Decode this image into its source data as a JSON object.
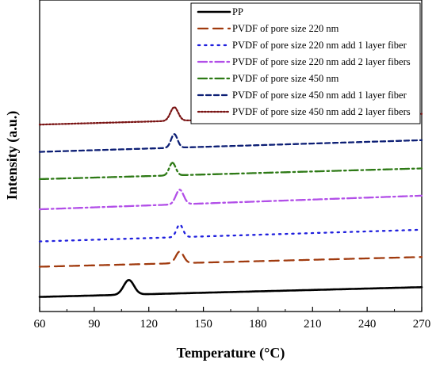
{
  "chart_data": {
    "type": "line",
    "xlabel": "Temperature (°C)",
    "ylabel": "Intensity (a.u.)",
    "xlim": [
      60,
      270
    ],
    "x_ticks": [
      60,
      90,
      120,
      150,
      180,
      210,
      240,
      270
    ],
    "y_ticks": [],
    "grid": false,
    "legend_position": "top-right",
    "series": [
      {
        "name": "PP",
        "color": "#000000",
        "dash": "solid",
        "baseline_start": 0.5,
        "baseline_end": 1.5,
        "peak_x": 109,
        "peak_height": 1.5,
        "peak_width": 4,
        "points": [
          [
            60,
            0.5
          ],
          [
            100,
            0.9
          ],
          [
            109,
            2.4
          ],
          [
            118,
            0.9
          ],
          [
            270,
            1.5
          ]
        ]
      },
      {
        "name": "PVDF of pore size 220 nm",
        "color": "#a03a0e",
        "dash": "long-dash",
        "baseline_start": 3.6,
        "baseline_end": 4.6,
        "peak_x": 137,
        "peak_height": 1.2,
        "peak_width": 3,
        "points": [
          [
            60,
            3.6
          ],
          [
            130,
            4.2
          ],
          [
            137,
            5.4
          ],
          [
            145,
            4.0
          ],
          [
            270,
            4.6
          ]
        ]
      },
      {
        "name": "PVDF of pore size 220 nm add 1 layer fiber",
        "color": "#1f1fdd",
        "dash": "dot",
        "baseline_start": 6.2,
        "baseline_end": 7.4,
        "peak_x": 137,
        "peak_height": 1.3,
        "peak_width": 2.5,
        "points": [
          [
            60,
            6.2
          ],
          [
            130,
            6.8
          ],
          [
            137,
            8.0
          ],
          [
            142,
            6.9
          ],
          [
            270,
            7.4
          ]
        ]
      },
      {
        "name": "PVDF of pore size 220 nm add 2 layer fibers",
        "color": "#b24fe8",
        "dash": "dash-dot",
        "baseline_start": 9.5,
        "baseline_end": 10.9,
        "peak_x": 137,
        "peak_height": 1.5,
        "peak_width": 3,
        "points": [
          [
            60,
            9.5
          ],
          [
            130,
            10.0
          ],
          [
            137,
            11.5
          ],
          [
            145,
            10.1
          ],
          [
            270,
            10.9
          ]
        ]
      },
      {
        "name": "PVDF of pore size 450 nm",
        "color": "#2e7a16",
        "dash": "dash-dot",
        "baseline_start": 12.6,
        "baseline_end": 13.7,
        "peak_x": 133,
        "peak_height": 1.3,
        "peak_width": 2.5,
        "points": [
          [
            60,
            12.6
          ],
          [
            127,
            13.0
          ],
          [
            133,
            14.2
          ],
          [
            139,
            13.2
          ],
          [
            270,
            13.7
          ]
        ]
      },
      {
        "name": "PVDF of pore size 450 nm add 1 layer fiber",
        "color": "#0d1f75",
        "dash": "short-dash",
        "baseline_start": 15.4,
        "baseline_end": 16.6,
        "peak_x": 134,
        "peak_height": 1.4,
        "peak_width": 2.5,
        "points": [
          [
            60,
            15.4
          ],
          [
            128,
            15.9
          ],
          [
            134,
            17.2
          ],
          [
            140,
            16.0
          ],
          [
            270,
            16.6
          ]
        ]
      },
      {
        "name": "PVDF of pore size 450 nm add 2 layer fibers",
        "color": "#7a1414",
        "dash": "dense-dot",
        "baseline_start": 18.2,
        "baseline_end": 19.3,
        "peak_x": 134,
        "peak_height": 1.4,
        "peak_width": 3,
        "points": [
          [
            60,
            18.2
          ],
          [
            127,
            18.7
          ],
          [
            134,
            20.0
          ],
          [
            141,
            18.8
          ],
          [
            270,
            19.3
          ]
        ]
      }
    ]
  }
}
